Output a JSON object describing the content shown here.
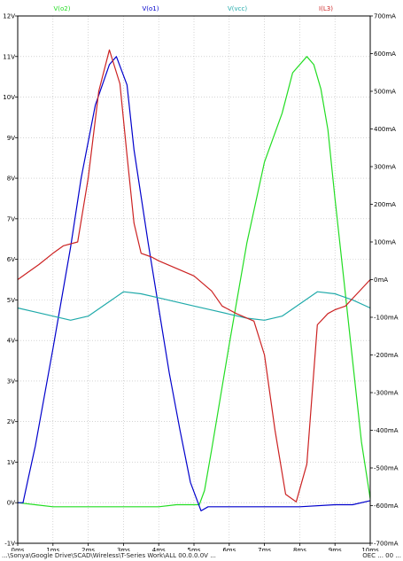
{
  "chart_data": {
    "type": "line",
    "title": "",
    "x_unit": "ms",
    "xlim": [
      0,
      10
    ],
    "x_ticks": [
      0,
      1,
      2,
      3,
      4,
      5,
      6,
      7,
      8,
      9,
      10
    ],
    "x_tick_labels": [
      "0ms",
      "1ms",
      "2ms",
      "3ms",
      "4ms",
      "5ms",
      "6ms",
      "7ms",
      "8ms",
      "9ms",
      "10ms"
    ],
    "left_axis": {
      "unit": "V",
      "ylim": [
        -1,
        12
      ],
      "ticks": [
        -1,
        0,
        1,
        2,
        3,
        4,
        5,
        6,
        7,
        8,
        9,
        10,
        11,
        12
      ],
      "tick_labels": [
        "-1V",
        "0V",
        "1V",
        "2V",
        "3V",
        "4V",
        "5V",
        "6V",
        "7V",
        "8V",
        "9V",
        "10V",
        "11V",
        "12V"
      ]
    },
    "right_axis": {
      "unit": "mA",
      "ylim": [
        -700,
        700
      ],
      "ticks": [
        -700,
        -600,
        -500,
        -400,
        -300,
        -200,
        -100,
        0,
        100,
        200,
        300,
        400,
        500,
        600,
        700
      ],
      "tick_labels": [
        "-700mA",
        "-600mA",
        "-500mA",
        "-400mA",
        "-300mA",
        "-200mA",
        "-100mA",
        "0mA",
        "100mA",
        "200mA",
        "300mA",
        "400mA",
        "500mA",
        "600mA",
        "700mA"
      ]
    },
    "grid": true,
    "legend_placement": "top",
    "series": [
      {
        "name": "V(o2)",
        "axis": "left",
        "color": "#22dd22",
        "x": [
          0,
          0.5,
          1,
          1.5,
          2,
          2.5,
          3,
          3.5,
          4,
          4.5,
          5,
          5.15,
          5.3,
          5.5,
          6,
          6.5,
          7,
          7.5,
          7.8,
          8.2,
          8.4,
          8.6,
          8.8,
          9,
          9.25,
          9.5,
          9.75,
          10
        ],
        "y": [
          0,
          -0.05,
          -0.1,
          -0.1,
          -0.1,
          -0.1,
          -0.1,
          -0.1,
          -0.1,
          -0.05,
          -0.05,
          -0.05,
          0.3,
          1.3,
          3.9,
          6.4,
          8.4,
          9.6,
          10.6,
          11.0,
          10.8,
          10.2,
          9.2,
          7.5,
          5.5,
          3.5,
          1.5,
          0.1
        ]
      },
      {
        "name": "V(o1)",
        "axis": "left",
        "color": "#0000cc",
        "x": [
          0,
          0.15,
          0.3,
          0.5,
          1,
          1.5,
          1.8,
          2.2,
          2.6,
          2.8,
          3.1,
          3.3,
          3.7,
          4,
          4.3,
          4.6,
          4.9,
          5.2,
          5.4,
          5.6,
          6,
          7,
          8,
          9,
          9.5,
          10
        ],
        "y": [
          0,
          0,
          0.6,
          1.4,
          3.8,
          6.3,
          8.0,
          9.8,
          10.8,
          11.0,
          10.3,
          8.7,
          6.4,
          4.8,
          3.2,
          1.8,
          0.5,
          -0.2,
          -0.1,
          -0.1,
          -0.1,
          -0.1,
          -0.1,
          -0.05,
          -0.05,
          0.05
        ]
      },
      {
        "name": "V(vcc)",
        "axis": "left",
        "color": "#20aaaa",
        "x": [
          0,
          0.5,
          1,
          1.5,
          2,
          2.5,
          3,
          3.5,
          4,
          4.5,
          5,
          5.5,
          6,
          6.5,
          7,
          7.5,
          8,
          8.5,
          9,
          9.5,
          10
        ],
        "y": [
          4.8,
          4.7,
          4.6,
          4.5,
          4.6,
          4.9,
          5.2,
          5.15,
          5.05,
          4.95,
          4.85,
          4.75,
          4.65,
          4.55,
          4.5,
          4.6,
          4.9,
          5.2,
          5.15,
          5.0,
          4.8
        ]
      },
      {
        "name": "I(L3)",
        "axis": "right",
        "color": "#cc2222",
        "x": [
          0,
          0.3,
          0.6,
          1,
          1.3,
          1.7,
          2,
          2.3,
          2.6,
          2.9,
          3.1,
          3.3,
          3.5,
          3.8,
          4,
          4.5,
          5,
          5.5,
          5.8,
          6.2,
          6.7,
          7,
          7.3,
          7.6,
          7.9,
          8.2,
          8.5,
          8.8,
          9,
          9.3,
          9.6,
          10
        ],
        "y": [
          0,
          20,
          40,
          70,
          90,
          100,
          270,
          500,
          610,
          520,
          330,
          150,
          70,
          60,
          50,
          30,
          10,
          -30,
          -70,
          -90,
          -110,
          -200,
          -400,
          -570,
          -590,
          -490,
          -120,
          -90,
          -80,
          -70,
          -40,
          0
        ]
      }
    ]
  },
  "footer": {
    "left": "...\\Sonya\\Google Drive\\SCAD\\Wireless\\T-Series Work\\ALL 00.0.0.0V ...",
    "right": "OEC ... 00 ..."
  }
}
